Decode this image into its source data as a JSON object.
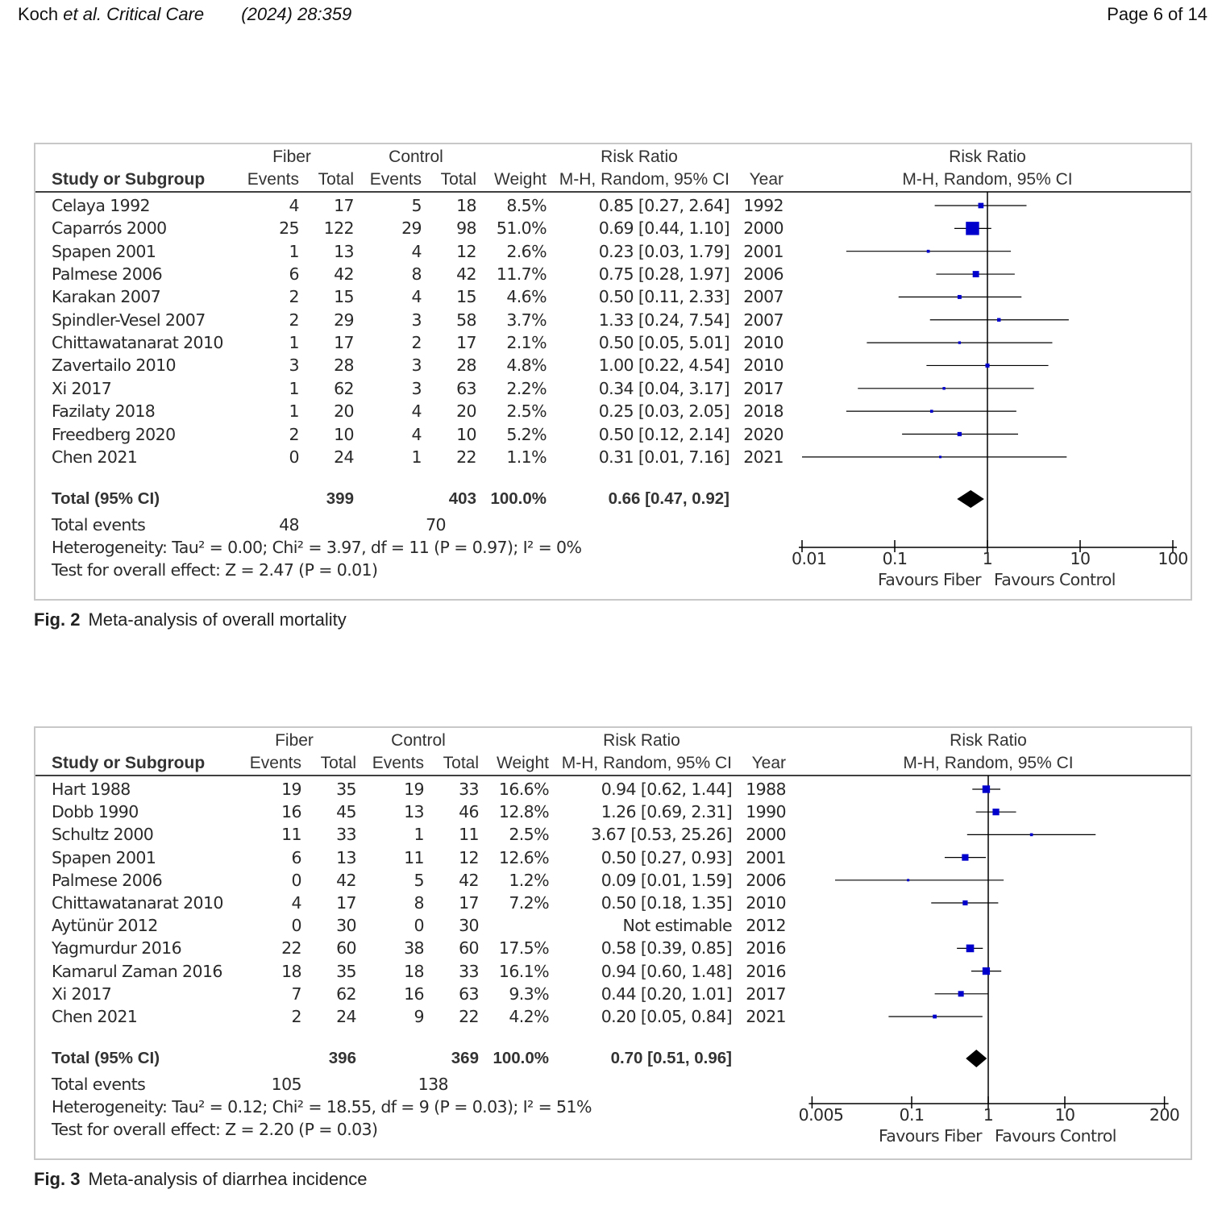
{
  "header": {
    "authors": "Koch",
    "etal": "et al.",
    "journal": "Critical Care",
    "citation": "(2024) 28:359",
    "page": "Page 6 of 14"
  },
  "colors": {
    "marker": "#0000cc",
    "diamond": "#000000",
    "axis": "#000000",
    "border": "#c8c8c8"
  },
  "figures": [
    {
      "caption_label": "Fig. 2",
      "caption_text": "Meta-analysis of overall mortality",
      "headers": {
        "group1": "Fiber",
        "group2": "Control",
        "rr": "Risk Ratio",
        "study": "Study or Subgroup",
        "events": "Events",
        "total": "Total",
        "events2": "Events",
        "total2": "Total",
        "weight": "Weight",
        "method": "M-H, Random, 95% CI",
        "year": "Year",
        "plot_title": "Risk Ratio",
        "plot_method": "M-H, Random, 95% CI"
      },
      "studies": [
        {
          "name": "Celaya 1992",
          "e1": "4",
          "n1": "17",
          "e2": "5",
          "n2": "18",
          "weight": "8.5%",
          "ci": "0.85 [0.27, 2.64]",
          "year": "1992",
          "rr": 0.85,
          "lo": 0.27,
          "hi": 2.64,
          "w": 8.5
        },
        {
          "name": "Caparrós 2000",
          "e1": "25",
          "n1": "122",
          "e2": "29",
          "n2": "98",
          "weight": "51.0%",
          "ci": "0.69 [0.44, 1.10]",
          "year": "2000",
          "rr": 0.69,
          "lo": 0.44,
          "hi": 1.1,
          "w": 51.0
        },
        {
          "name": "Spapen 2001",
          "e1": "1",
          "n1": "13",
          "e2": "4",
          "n2": "12",
          "weight": "2.6%",
          "ci": "0.23 [0.03, 1.79]",
          "year": "2001",
          "rr": 0.23,
          "lo": 0.03,
          "hi": 1.79,
          "w": 2.6
        },
        {
          "name": "Palmese 2006",
          "e1": "6",
          "n1": "42",
          "e2": "8",
          "n2": "42",
          "weight": "11.7%",
          "ci": "0.75 [0.28, 1.97]",
          "year": "2006",
          "rr": 0.75,
          "lo": 0.28,
          "hi": 1.97,
          "w": 11.7
        },
        {
          "name": "Karakan 2007",
          "e1": "2",
          "n1": "15",
          "e2": "4",
          "n2": "15",
          "weight": "4.6%",
          "ci": "0.50 [0.11, 2.33]",
          "year": "2007",
          "rr": 0.5,
          "lo": 0.11,
          "hi": 2.33,
          "w": 4.6
        },
        {
          "name": "Spindler-Vesel 2007",
          "e1": "2",
          "n1": "29",
          "e2": "3",
          "n2": "58",
          "weight": "3.7%",
          "ci": "1.33 [0.24, 7.54]",
          "year": "2007",
          "rr": 1.33,
          "lo": 0.24,
          "hi": 7.54,
          "w": 3.7
        },
        {
          "name": "Chittawatanarat 2010",
          "e1": "1",
          "n1": "17",
          "e2": "2",
          "n2": "17",
          "weight": "2.1%",
          "ci": "0.50 [0.05, 5.01]",
          "year": "2010",
          "rr": 0.5,
          "lo": 0.05,
          "hi": 5.01,
          "w": 2.1
        },
        {
          "name": "Zavertailo 2010",
          "e1": "3",
          "n1": "28",
          "e2": "3",
          "n2": "28",
          "weight": "4.8%",
          "ci": "1.00 [0.22, 4.54]",
          "year": "2010",
          "rr": 1.0,
          "lo": 0.22,
          "hi": 4.54,
          "w": 4.8
        },
        {
          "name": "Xi 2017",
          "e1": "1",
          "n1": "62",
          "e2": "3",
          "n2": "63",
          "weight": "2.2%",
          "ci": "0.34 [0.04, 3.17]",
          "year": "2017",
          "rr": 0.34,
          "lo": 0.04,
          "hi": 3.17,
          "w": 2.2
        },
        {
          "name": "Fazilaty 2018",
          "e1": "1",
          "n1": "20",
          "e2": "4",
          "n2": "20",
          "weight": "2.5%",
          "ci": "0.25 [0.03, 2.05]",
          "year": "2018",
          "rr": 0.25,
          "lo": 0.03,
          "hi": 2.05,
          "w": 2.5
        },
        {
          "name": "Freedberg 2020",
          "e1": "2",
          "n1": "10",
          "e2": "4",
          "n2": "10",
          "weight": "5.2%",
          "ci": "0.50 [0.12, 2.14]",
          "year": "2020",
          "rr": 0.5,
          "lo": 0.12,
          "hi": 2.14,
          "w": 5.2
        },
        {
          "name": "Chen 2021",
          "e1": "0",
          "n1": "24",
          "e2": "1",
          "n2": "22",
          "weight": "1.1%",
          "ci": "0.31 [0.01, 7.16]",
          "year": "2021",
          "rr": 0.31,
          "lo": 0.01,
          "hi": 7.16,
          "w": 1.1
        }
      ],
      "total": {
        "label": "Total (95% CI)",
        "n1": "399",
        "n2": "403",
        "weight": "100.0%",
        "ci": "0.66 [0.47, 0.92]",
        "rr": 0.66,
        "lo": 0.47,
        "hi": 0.92
      },
      "total_events": {
        "label": "Total events",
        "e1": "48",
        "e2": "70"
      },
      "heterogeneity": "Heterogeneity: Tau² = 0.00; Chi² = 3.97, df = 11 (P = 0.97); I² = 0%",
      "overall_effect": "Test for overall effect: Z = 2.47 (P = 0.01)",
      "axis": {
        "ticks": [
          0.01,
          0.1,
          1,
          10,
          100
        ],
        "tick_labels": [
          "0.01",
          "0.1",
          "1",
          "10",
          "100"
        ],
        "range": [
          0.01,
          100
        ],
        "favours_left": "Favours Fiber",
        "favours_right": "Favours Control"
      }
    },
    {
      "caption_label": "Fig. 3",
      "caption_text": "Meta-analysis of diarrhea incidence",
      "headers": {
        "group1": "Fiber",
        "group2": "Control",
        "rr": "Risk Ratio",
        "study": "Study or Subgroup",
        "events": "Events",
        "total": "Total",
        "events2": "Events",
        "total2": "Total",
        "weight": "Weight",
        "method": "M-H, Random, 95% CI",
        "year": "Year",
        "plot_title": "Risk Ratio",
        "plot_method": "M-H, Random, 95% CI"
      },
      "studies": [
        {
          "name": "Hart 1988",
          "e1": "19",
          "n1": "35",
          "e2": "19",
          "n2": "33",
          "weight": "16.6%",
          "ci": "0.94 [0.62, 1.44]",
          "year": "1988",
          "rr": 0.94,
          "lo": 0.62,
          "hi": 1.44,
          "w": 16.6
        },
        {
          "name": "Dobb 1990",
          "e1": "16",
          "n1": "45",
          "e2": "13",
          "n2": "46",
          "weight": "12.8%",
          "ci": "1.26 [0.69, 2.31]",
          "year": "1990",
          "rr": 1.26,
          "lo": 0.69,
          "hi": 2.31,
          "w": 12.8
        },
        {
          "name": "Schultz 2000",
          "e1": "11",
          "n1": "33",
          "e2": "1",
          "n2": "11",
          "weight": "2.5%",
          "ci": "3.67 [0.53, 25.26]",
          "year": "2000",
          "rr": 3.67,
          "lo": 0.53,
          "hi": 25.26,
          "w": 2.5
        },
        {
          "name": "Spapen 2001",
          "e1": "6",
          "n1": "13",
          "e2": "11",
          "n2": "12",
          "weight": "12.6%",
          "ci": "0.50 [0.27, 0.93]",
          "year": "2001",
          "rr": 0.5,
          "lo": 0.27,
          "hi": 0.93,
          "w": 12.6
        },
        {
          "name": "Palmese 2006",
          "e1": "0",
          "n1": "42",
          "e2": "5",
          "n2": "42",
          "weight": "1.2%",
          "ci": "0.09 [0.01, 1.59]",
          "year": "2006",
          "rr": 0.09,
          "lo": 0.01,
          "hi": 1.59,
          "w": 1.2
        },
        {
          "name": "Chittawatanarat 2010",
          "e1": "4",
          "n1": "17",
          "e2": "8",
          "n2": "17",
          "weight": "7.2%",
          "ci": "0.50 [0.18, 1.35]",
          "year": "2010",
          "rr": 0.5,
          "lo": 0.18,
          "hi": 1.35,
          "w": 7.2
        },
        {
          "name": "Aytünür 2012",
          "e1": "0",
          "n1": "30",
          "e2": "0",
          "n2": "30",
          "weight": "",
          "ci": "Not estimable",
          "year": "2012",
          "rr": null,
          "lo": null,
          "hi": null,
          "w": 0
        },
        {
          "name": "Yagmurdur 2016",
          "e1": "22",
          "n1": "60",
          "e2": "38",
          "n2": "60",
          "weight": "17.5%",
          "ci": "0.58 [0.39, 0.85]",
          "year": "2016",
          "rr": 0.58,
          "lo": 0.39,
          "hi": 0.85,
          "w": 17.5
        },
        {
          "name": "Kamarul Zaman 2016",
          "e1": "18",
          "n1": "35",
          "e2": "18",
          "n2": "33",
          "weight": "16.1%",
          "ci": "0.94 [0.60, 1.48]",
          "year": "2016",
          "rr": 0.94,
          "lo": 0.6,
          "hi": 1.48,
          "w": 16.1
        },
        {
          "name": "Xi 2017",
          "e1": "7",
          "n1": "62",
          "e2": "16",
          "n2": "63",
          "weight": "9.3%",
          "ci": "0.44 [0.20, 1.01]",
          "year": "2017",
          "rr": 0.44,
          "lo": 0.2,
          "hi": 1.01,
          "w": 9.3
        },
        {
          "name": "Chen 2021",
          "e1": "2",
          "n1": "24",
          "e2": "9",
          "n2": "22",
          "weight": "4.2%",
          "ci": "0.20 [0.05, 0.84]",
          "year": "2021",
          "rr": 0.2,
          "lo": 0.05,
          "hi": 0.84,
          "w": 4.2
        }
      ],
      "total": {
        "label": "Total (95% CI)",
        "n1": "396",
        "n2": "369",
        "weight": "100.0%",
        "ci": "0.70 [0.51, 0.96]",
        "rr": 0.7,
        "lo": 0.51,
        "hi": 0.96
      },
      "total_events": {
        "label": "Total events",
        "e1": "105",
        "e2": "138"
      },
      "heterogeneity": "Heterogeneity: Tau² = 0.12; Chi² = 18.55, df = 9 (P = 0.03); I² = 51%",
      "overall_effect": "Test for overall effect: Z = 2.20 (P = 0.03)",
      "axis": {
        "ticks": [
          0.005,
          0.1,
          1,
          10,
          200
        ],
        "tick_labels": [
          "0.005",
          "0.1",
          "1",
          "10",
          "200"
        ],
        "range": [
          0.005,
          200
        ],
        "favours_left": "Favours Fiber",
        "favours_right": "Favours Control"
      }
    }
  ]
}
